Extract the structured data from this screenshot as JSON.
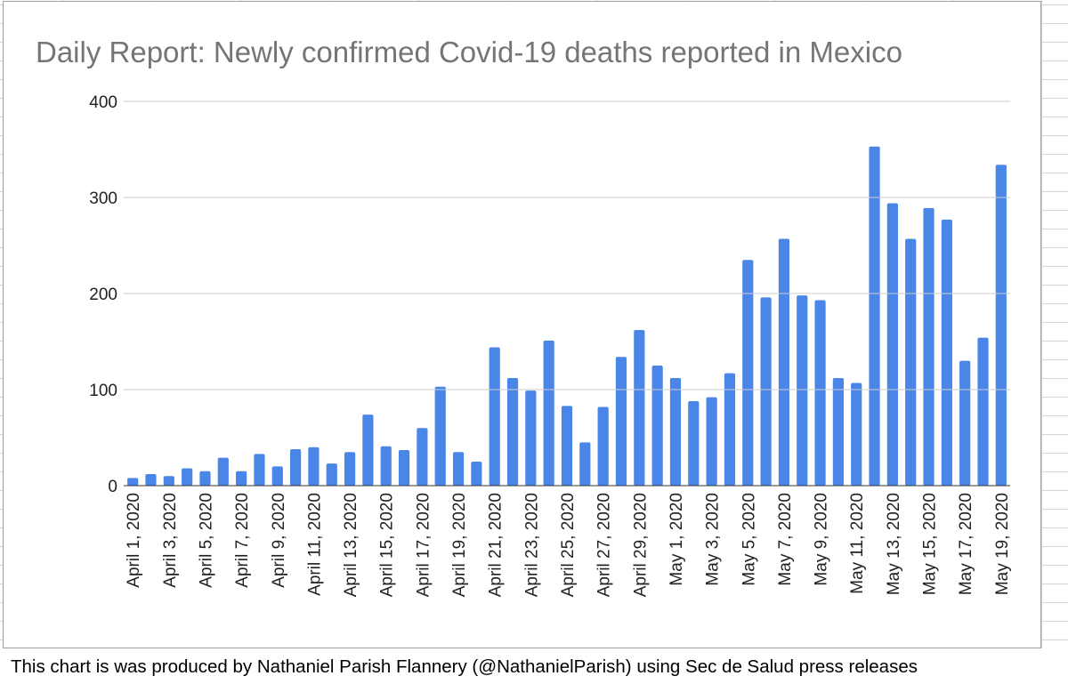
{
  "chart_data": {
    "type": "bar",
    "title": "Daily Report: Newly confirmed Covid-19 deaths reported in Mexico",
    "xlabel": "",
    "ylabel": "",
    "ylim": [
      0,
      400
    ],
    "yticks": [
      "0",
      "100",
      "200",
      "300",
      "400"
    ],
    "grid": true,
    "legend": "none",
    "bar_color": "#4a86e8",
    "categories": [
      "April 1, 2020",
      "April 2, 2020",
      "April 3, 2020",
      "April 4, 2020",
      "April 5, 2020",
      "April 6, 2020",
      "April 7, 2020",
      "April 8, 2020",
      "April 9, 2020",
      "April 10, 2020",
      "April 11, 2020",
      "April 12, 2020",
      "April 13, 2020",
      "April 14, 2020",
      "April 15, 2020",
      "April 16, 2020",
      "April 17, 2020",
      "April 18, 2020",
      "April 19, 2020",
      "April 20, 2020",
      "April 21, 2020",
      "April 22, 2020",
      "April 23, 2020",
      "April 24, 2020",
      "April 25, 2020",
      "April 26, 2020",
      "April 27, 2020",
      "April 28, 2020",
      "April 29, 2020",
      "April 30, 2020",
      "May 1, 2020",
      "May 2, 2020",
      "May 3, 2020",
      "May 4, 2020",
      "May 5, 2020",
      "May 6, 2020",
      "May 7, 2020",
      "May 8, 2020",
      "May 9, 2020",
      "May 10, 2020",
      "May 11, 2020",
      "May 12, 2020",
      "May 13, 2020",
      "May 14, 2020",
      "May 15, 2020",
      "May 16, 2020",
      "May 17, 2020",
      "May 18, 2020",
      "May 19, 2020"
    ],
    "shown_tick_labels": [
      "April 1, 2020",
      "April 3, 2020",
      "April 5, 2020",
      "April 7, 2020",
      "April 9, 2020",
      "April 11, 2020",
      "April 13, 2020",
      "April 15, 2020",
      "April 17, 2020",
      "April 19, 2020",
      "April 21, 2020",
      "April 23, 2020",
      "April 25, 2020",
      "April 27, 2020",
      "April 29, 2020",
      "May 1, 2020",
      "May 3, 2020",
      "May 5, 2020",
      "May 7, 2020",
      "May 9, 2020",
      "May 11, 2020",
      "May 13, 2020",
      "May 15, 2020",
      "May 17, 2020",
      "May 19, 2020"
    ],
    "values": [
      8,
      12,
      10,
      18,
      15,
      29,
      15,
      33,
      20,
      38,
      40,
      23,
      35,
      74,
      41,
      37,
      60,
      103,
      35,
      25,
      144,
      112,
      99,
      151,
      83,
      45,
      82,
      134,
      162,
      125,
      112,
      88,
      92,
      117,
      235,
      196,
      257,
      198,
      193,
      112,
      107,
      353,
      294,
      257,
      289,
      277,
      130,
      154,
      334
    ]
  },
  "footer": {
    "text": "This chart is was produced by Nathaniel Parish Flannery (@NathanielParish) using Sec de Salud press releases"
  }
}
